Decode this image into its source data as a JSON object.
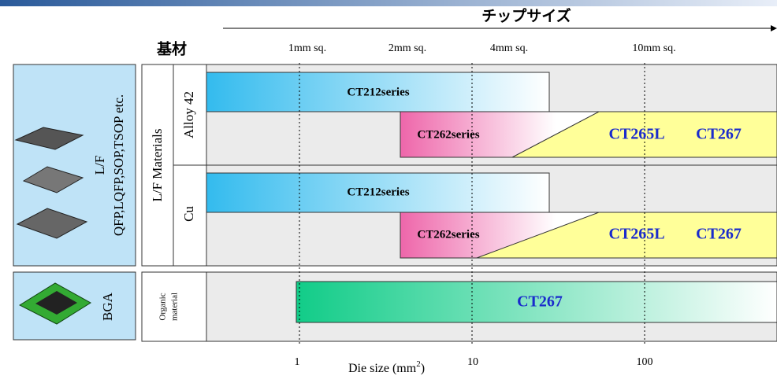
{
  "header": {
    "title": "チップサイズ",
    "substrate": "基材"
  },
  "top_ticks": [
    "1mm sq.",
    "2mm sq.",
    "4mm sq.",
    "10mm sq."
  ],
  "packages": {
    "lf": {
      "label": "L/F",
      "types": "QFP,LQFP,SOP,TSOP etc."
    },
    "bga": "BGA"
  },
  "materials": {
    "group": "L/F Materials",
    "alloy": "Alloy 42",
    "cu": "Cu",
    "organic_line1": "Organic",
    "organic_line2": "material"
  },
  "products": {
    "ct212": "CT212series",
    "ct262": "CT262series",
    "ct265l": "CT265L",
    "ct267": "CT267"
  },
  "bottom_ticks": [
    "1",
    "10",
    "100"
  ],
  "x_axis": {
    "label": "Die size (mm",
    "sup": "2",
    "close": ")"
  }
}
